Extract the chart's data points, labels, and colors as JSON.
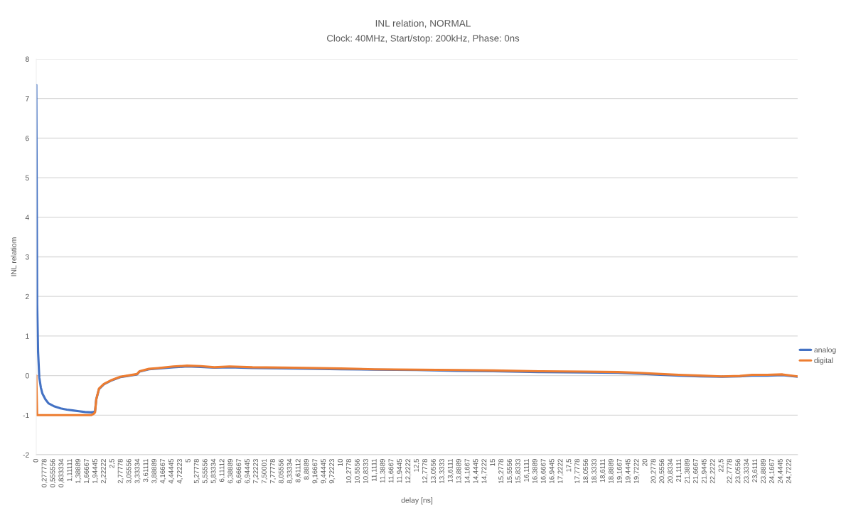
{
  "chart_data": {
    "type": "line",
    "title": "INL relation, NORMAL",
    "subtitle": "Clock: 40MHz, Start/stop: 200kHz, Phase: 0ns",
    "xlabel": "delay [ns]",
    "ylabel": "INL relatiom",
    "x": [
      0,
      0.03,
      0.06,
      0.1,
      0.15,
      0.2,
      0.3,
      0.4,
      0.6,
      0.8,
      1.0,
      1.2,
      1.4,
      1.6,
      1.8,
      1.88,
      1.93,
      1.97,
      2.06,
      2.22,
      2.45,
      2.76,
      3.0,
      3.31,
      3.39,
      3.7,
      4.0,
      4.5,
      4.95,
      5.4,
      5.85,
      6.35,
      7.1,
      8.5,
      10.0,
      11.1,
      12.5,
      13.8,
      15.0,
      16.5,
      18.0,
      19.1,
      19.8,
      20.5,
      21.1,
      21.8,
      22.5,
      23.1,
      23.5,
      24.0,
      24.5,
      25.0
    ],
    "series": [
      {
        "name": "analog",
        "color": "#4472c4",
        "values": [
          7.35,
          1.8,
          0.6,
          -0.05,
          -0.3,
          -0.45,
          -0.6,
          -0.7,
          -0.78,
          -0.83,
          -0.86,
          -0.88,
          -0.9,
          -0.92,
          -0.93,
          -0.92,
          -0.9,
          -0.6,
          -0.34,
          -0.22,
          -0.13,
          -0.04,
          -0.01,
          0.03,
          0.1,
          0.16,
          0.18,
          0.21,
          0.23,
          0.22,
          0.2,
          0.21,
          0.19,
          0.18,
          0.16,
          0.15,
          0.14,
          0.12,
          0.11,
          0.09,
          0.08,
          0.07,
          0.05,
          0.02,
          0.0,
          -0.02,
          -0.03,
          -0.02,
          0.0,
          0.0,
          0.01,
          -0.03
        ]
      },
      {
        "name": "digital",
        "color": "#ed7d31",
        "values": [
          0,
          -1,
          -1,
          -1,
          -1,
          -1,
          -1,
          -1,
          -1,
          -1,
          -1,
          -1,
          -1,
          -1,
          -1,
          -0.97,
          -0.93,
          -0.6,
          -0.33,
          -0.21,
          -0.12,
          -0.03,
          0.0,
          0.04,
          0.11,
          0.17,
          0.19,
          0.23,
          0.25,
          0.24,
          0.21,
          0.23,
          0.21,
          0.2,
          0.18,
          0.16,
          0.15,
          0.14,
          0.13,
          0.11,
          0.1,
          0.09,
          0.07,
          0.04,
          0.02,
          0.0,
          -0.02,
          -0.01,
          0.02,
          0.02,
          0.03,
          -0.02
        ]
      }
    ],
    "xlim": [
      0,
      25
    ],
    "xticks": [
      0,
      {
        "value": 0.277778,
        "label": "0,277778"
      },
      {
        "value": 0.555556,
        "label": "0,555556"
      },
      {
        "value": 0.833334,
        "label": "0,833334"
      },
      {
        "value": 1.11111,
        "label": "1,11111"
      },
      {
        "value": 1.38889,
        "label": "1,38889"
      },
      {
        "value": 1.66667,
        "label": "1,66667"
      },
      {
        "value": 1.94445,
        "label": "1,94445"
      },
      {
        "value": 2.22222,
        "label": "2,22222"
      },
      {
        "value": 2.5,
        "label": "2,5"
      },
      {
        "value": 2.77778,
        "label": "2,77778"
      },
      {
        "value": 3.05556,
        "label": "3,05556"
      },
      {
        "value": 3.33334,
        "label": "3,33334"
      },
      {
        "value": 3.61111,
        "label": "3,61111"
      },
      {
        "value": 3.88889,
        "label": "3,88889"
      },
      {
        "value": 4.16667,
        "label": "4,16667"
      },
      {
        "value": 4.44445,
        "label": "4,44445"
      },
      {
        "value": 4.72223,
        "label": "4,72223"
      },
      5,
      {
        "value": 5.27778,
        "label": "5,27778"
      },
      {
        "value": 5.55556,
        "label": "5,55556"
      },
      {
        "value": 5.83334,
        "label": "5,83334"
      },
      {
        "value": 6.11112,
        "label": "6,11112"
      },
      {
        "value": 6.38889,
        "label": "6,38889"
      },
      {
        "value": 6.66667,
        "label": "6,66667"
      },
      {
        "value": 6.94445,
        "label": "6,94445"
      },
      {
        "value": 7.22223,
        "label": "7,22223"
      },
      {
        "value": 7.50001,
        "label": "7,50001"
      },
      {
        "value": 7.77778,
        "label": "7,77778"
      },
      {
        "value": 8.05556,
        "label": "8,05556"
      },
      {
        "value": 8.33334,
        "label": "8,33334"
      },
      {
        "value": 8.61112,
        "label": "8,61112"
      },
      {
        "value": 8.8889,
        "label": "8,8889"
      },
      {
        "value": 9.16667,
        "label": "9,16667"
      },
      {
        "value": 9.44445,
        "label": "9,44445"
      },
      {
        "value": 9.72223,
        "label": "9,72223"
      },
      10,
      {
        "value": 10.2778,
        "label": "10,2778"
      },
      {
        "value": 10.5556,
        "label": "10,5556"
      },
      {
        "value": 10.8333,
        "label": "10,8333"
      },
      {
        "value": 11.1111,
        "label": "11,1111"
      },
      {
        "value": 11.3889,
        "label": "11,3889"
      },
      {
        "value": 11.6667,
        "label": "11,6667"
      },
      {
        "value": 11.9445,
        "label": "11,9445"
      },
      {
        "value": 12.2222,
        "label": "12,2222"
      },
      {
        "value": 12.5,
        "label": "12,5"
      },
      {
        "value": 12.7778,
        "label": "12,7778"
      },
      {
        "value": 13.0556,
        "label": "13,0556"
      },
      {
        "value": 13.3333,
        "label": "13,3333"
      },
      {
        "value": 13.6111,
        "label": "13,6111"
      },
      {
        "value": 13.8889,
        "label": "13,8889"
      },
      {
        "value": 14.1667,
        "label": "14,1667"
      },
      {
        "value": 14.4445,
        "label": "14,4445"
      },
      {
        "value": 14.7222,
        "label": "14,7222"
      },
      15,
      {
        "value": 15.2778,
        "label": "15,2778"
      },
      {
        "value": 15.5556,
        "label": "15,5556"
      },
      {
        "value": 15.8333,
        "label": "15,8333"
      },
      {
        "value": 16.1111,
        "label": "16,1111"
      },
      {
        "value": 16.3889,
        "label": "16,3889"
      },
      {
        "value": 16.6667,
        "label": "16,6667"
      },
      {
        "value": 16.9445,
        "label": "16,9445"
      },
      {
        "value": 17.2222,
        "label": "17,2222"
      },
      {
        "value": 17.5,
        "label": "17,5"
      },
      {
        "value": 17.7778,
        "label": "17,7778"
      },
      {
        "value": 18.0556,
        "label": "18,0556"
      },
      {
        "value": 18.3333,
        "label": "18,3333"
      },
      {
        "value": 18.6111,
        "label": "18,6111"
      },
      {
        "value": 18.8889,
        "label": "18,8889"
      },
      {
        "value": 19.1667,
        "label": "19,1667"
      },
      {
        "value": 19.4445,
        "label": "19,4445"
      },
      {
        "value": 19.7222,
        "label": "19,7222"
      },
      20,
      {
        "value": 20.2778,
        "label": "20,2778"
      },
      {
        "value": 20.5556,
        "label": "20,5556"
      },
      {
        "value": 20.8334,
        "label": "20,8334"
      },
      {
        "value": 21.1111,
        "label": "21,1111"
      },
      {
        "value": 21.3889,
        "label": "21,3889"
      },
      {
        "value": 21.6667,
        "label": "21,6667"
      },
      {
        "value": 21.9445,
        "label": "21,9445"
      },
      {
        "value": 22.2222,
        "label": "22,2222"
      },
      {
        "value": 22.5,
        "label": "22,5"
      },
      {
        "value": 22.7778,
        "label": "22,7778"
      },
      {
        "value": 23.0556,
        "label": "23,0556"
      },
      {
        "value": 23.3334,
        "label": "23,3334"
      },
      {
        "value": 23.6111,
        "label": "23,6111"
      },
      {
        "value": 23.8889,
        "label": "23,8889"
      },
      {
        "value": 24.1667,
        "label": "24,1667"
      },
      {
        "value": 24.4445,
        "label": "24,4445"
      },
      {
        "value": 24.7222,
        "label": "24,7222"
      }
    ],
    "ylim": [
      -2,
      8
    ],
    "yticks": [
      -2,
      -1,
      0,
      1,
      2,
      3,
      4,
      5,
      6,
      7,
      8
    ],
    "grid": "y",
    "legend": "right"
  }
}
